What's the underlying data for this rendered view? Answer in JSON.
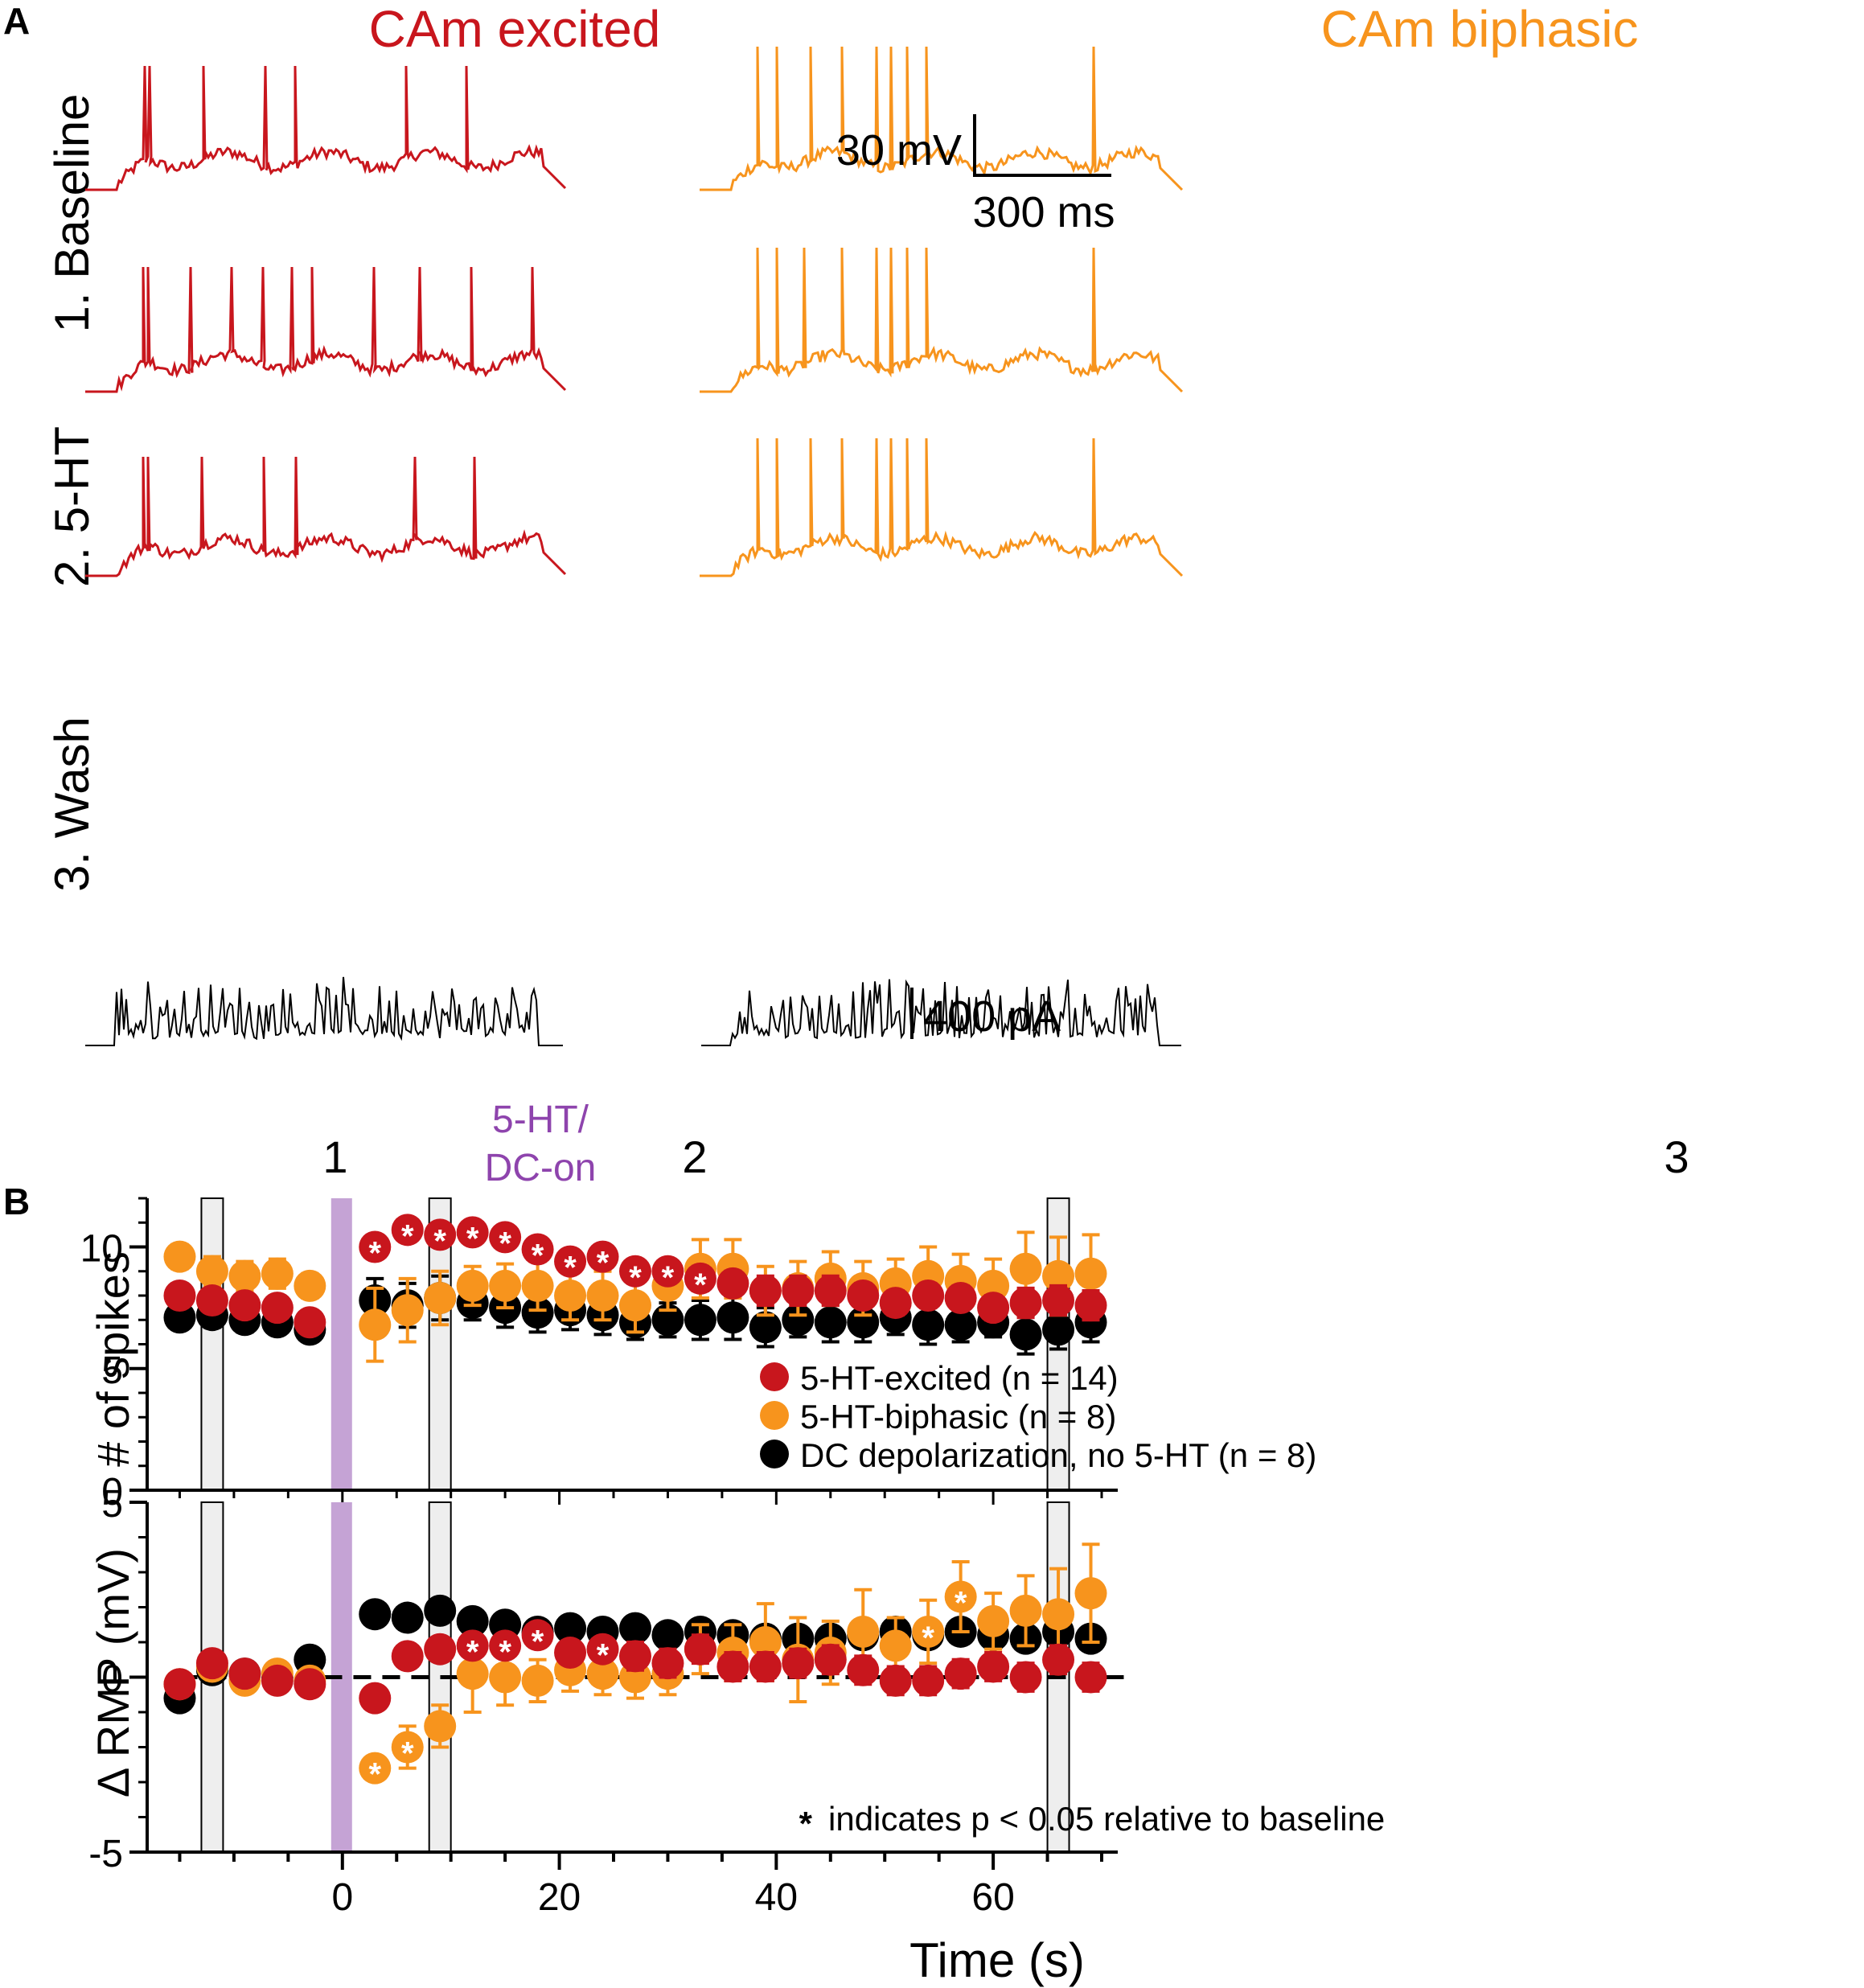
{
  "colors": {
    "excited": "#c8161d",
    "biphasic": "#f7941d",
    "dc": "#000000",
    "drug": "#c5a3d5",
    "window_fill": "#eeeeee"
  },
  "panel_a": {
    "panel_label": "A",
    "columns": [
      "CAm excited",
      "CAm biphasic"
    ],
    "rows": [
      "1. Baseline",
      "2. 5-HT",
      "3. Wash"
    ],
    "voltage_scale": "30 mV",
    "time_scale": "300 ms",
    "current_scale": "400 pA"
  },
  "panel_b": {
    "panel_label": "B",
    "window_labels": [
      "1",
      "2",
      "3"
    ],
    "drug_label_line1": "5-HT/",
    "drug_label_line2": "DC-on",
    "note_star": "*",
    "note_text": "indicates p < 0.05 relative to baseline",
    "legend": [
      "5-HT-excited (n = 14)",
      "5-HT-biphasic (n = 8)",
      "DC depolarization, no 5-HT (n = 8)"
    ]
  },
  "chart_data": [
    {
      "type": "scatter",
      "title": "",
      "xlabel": "Time (s)",
      "ylabel": "# of spikes",
      "xlim": [
        -18,
        70
      ],
      "ylim": [
        0,
        12
      ],
      "x_ticks": [
        "0",
        "20",
        "40",
        "60"
      ],
      "y_ticks": [
        "0",
        "5",
        "10"
      ],
      "highlight_windows": [
        [
          -13,
          -11
        ],
        [
          8,
          10
        ],
        [
          65,
          67
        ]
      ],
      "drug_onset": 0,
      "series": [
        {
          "name": "DC depolarization, no 5-HT (n = 8)",
          "color": "#000000",
          "x": [
            -15,
            -12,
            -9,
            -6,
            -3,
            3,
            6,
            9,
            12,
            15,
            18,
            21,
            24,
            27,
            30,
            33,
            36,
            39,
            42,
            45,
            48,
            51,
            54,
            57,
            60,
            63,
            66,
            69
          ],
          "y": [
            7.1,
            7.2,
            7.0,
            6.9,
            6.6,
            7.8,
            7.6,
            7.9,
            7.7,
            7.5,
            7.3,
            7.4,
            7.2,
            6.9,
            7.0,
            7.0,
            7.1,
            6.7,
            7.0,
            6.9,
            6.9,
            7.1,
            6.8,
            6.8,
            6.9,
            6.4,
            6.6,
            6.9
          ],
          "err": [
            0.4,
            0.5,
            0.5,
            0.4,
            0.3,
            0.9,
            0.9,
            0.9,
            0.7,
            0.8,
            0.8,
            0.8,
            0.8,
            0.7,
            0.7,
            0.8,
            0.9,
            0.8,
            0.7,
            0.8,
            0.8,
            0.7,
            0.8,
            0.7,
            0.6,
            0.8,
            0.8,
            0.8
          ],
          "significant": []
        },
        {
          "name": "5-HT-biphasic (n = 8)",
          "color": "#f7941d",
          "x": [
            -15,
            -12,
            -9,
            -6,
            -3,
            3,
            6,
            9,
            12,
            15,
            18,
            21,
            24,
            27,
            30,
            33,
            36,
            39,
            42,
            45,
            48,
            51,
            54,
            57,
            60,
            63,
            66,
            69
          ],
          "y": [
            9.6,
            9.0,
            8.8,
            8.9,
            8.4,
            6.8,
            7.4,
            7.9,
            8.4,
            8.4,
            8.4,
            8.0,
            8.0,
            7.6,
            8.4,
            9.1,
            9.1,
            8.2,
            8.3,
            8.7,
            8.3,
            8.5,
            8.8,
            8.6,
            8.4,
            9.1,
            8.8,
            8.9
          ],
          "err": [
            0.5,
            0.6,
            0.6,
            0.6,
            0.5,
            1.5,
            1.3,
            1.1,
            0.8,
            0.9,
            1.0,
            1.0,
            1.0,
            1.1,
            1.0,
            1.2,
            1.2,
            1.0,
            1.1,
            1.1,
            1.1,
            1.0,
            1.2,
            1.1,
            1.1,
            1.5,
            1.6,
            1.6
          ],
          "significant": []
        },
        {
          "name": "5-HT-excited (n = 14)",
          "color": "#c8161d",
          "x": [
            -15,
            -12,
            -9,
            -6,
            -3,
            3,
            6,
            9,
            12,
            15,
            18,
            21,
            24,
            27,
            30,
            33,
            36,
            39,
            42,
            45,
            48,
            51,
            54,
            57,
            60,
            63,
            66,
            69
          ],
          "y": [
            8.0,
            7.8,
            7.6,
            7.5,
            6.9,
            10.0,
            10.7,
            10.5,
            10.6,
            10.4,
            9.9,
            9.4,
            9.6,
            9.0,
            9.0,
            8.7,
            8.5,
            8.2,
            8.2,
            8.2,
            8.0,
            7.7,
            8.0,
            7.9,
            7.5,
            7.7,
            7.8,
            7.6
          ],
          "err": [
            0.3,
            0.3,
            0.3,
            0.3,
            0.3,
            0.4,
            0.3,
            0.3,
            0.3,
            0.4,
            0.4,
            0.4,
            0.4,
            0.4,
            0.4,
            0.5,
            0.5,
            0.6,
            0.6,
            0.6,
            0.5,
            0.5,
            0.5,
            0.5,
            0.5,
            0.6,
            0.6,
            0.6
          ],
          "significant": [
            3,
            6,
            9,
            12,
            15,
            18,
            21,
            24,
            27,
            30,
            33
          ]
        }
      ]
    },
    {
      "type": "scatter",
      "title": "",
      "xlabel": "Time (s)",
      "ylabel": "Δ RMP (mV)",
      "xlim": [
        -18,
        70
      ],
      "ylim": [
        -5,
        5
      ],
      "x_ticks": [
        "0",
        "20",
        "40",
        "60"
      ],
      "y_ticks": [
        "-5",
        "0",
        "5"
      ],
      "zero_line": true,
      "series": [
        {
          "name": "DC depolarization, no 5-HT (n = 8)",
          "color": "#000000",
          "x": [
            -15,
            -12,
            -9,
            -6,
            -3,
            3,
            6,
            9,
            12,
            15,
            18,
            21,
            24,
            27,
            30,
            33,
            36,
            39,
            42,
            45,
            48,
            51,
            54,
            57,
            60,
            63,
            66,
            69
          ],
          "y": [
            -0.6,
            0.2,
            0.1,
            0.0,
            0.5,
            1.8,
            1.7,
            1.9,
            1.6,
            1.5,
            1.3,
            1.4,
            1.3,
            1.4,
            1.2,
            1.3,
            1.2,
            1.1,
            1.1,
            1.1,
            1.2,
            1.3,
            1.2,
            1.3,
            1.2,
            1.1,
            1.3,
            1.1
          ],
          "err": [
            0.2,
            0.2,
            0.2,
            0.2,
            0.2,
            0.2,
            0.2,
            0.2,
            0.2,
            0.2,
            0.2,
            0.2,
            0.3,
            0.3,
            0.3,
            0.3,
            0.3,
            0.3,
            0.3,
            0.3,
            0.3,
            0.3,
            0.3,
            0.3,
            0.3,
            0.3,
            0.3,
            0.3
          ],
          "significant": []
        },
        {
          "name": "5-HT-biphasic (n = 8)",
          "color": "#f7941d",
          "x": [
            -15,
            -12,
            -9,
            -6,
            -3,
            3,
            6,
            9,
            12,
            15,
            18,
            21,
            24,
            27,
            30,
            33,
            36,
            39,
            42,
            45,
            48,
            51,
            54,
            57,
            60,
            63,
            66,
            69
          ],
          "y": [
            -0.2,
            0.3,
            -0.1,
            0.1,
            -0.1,
            -2.6,
            -2.0,
            -1.4,
            0.1,
            0.0,
            -0.1,
            0.2,
            0.1,
            0.0,
            0.1,
            0.8,
            0.7,
            1.0,
            0.5,
            0.7,
            1.3,
            0.9,
            1.3,
            2.3,
            1.6,
            1.9,
            1.8,
            2.4
          ],
          "err": [
            0.2,
            0.2,
            0.2,
            0.2,
            0.2,
            0.3,
            0.6,
            0.6,
            1.1,
            0.8,
            0.6,
            0.6,
            0.6,
            0.6,
            0.6,
            0.7,
            0.8,
            1.1,
            1.2,
            0.9,
            1.2,
            0.8,
            0.9,
            1.0,
            0.8,
            1.0,
            1.3,
            1.4
          ],
          "significant": [
            3,
            6,
            54,
            57
          ]
        },
        {
          "name": "5-HT-excited (n = 14)",
          "color": "#c8161d",
          "x": [
            -15,
            -12,
            -9,
            -6,
            -3,
            3,
            6,
            9,
            12,
            15,
            18,
            21,
            24,
            27,
            30,
            33,
            36,
            39,
            42,
            45,
            48,
            51,
            54,
            57,
            60,
            63,
            66,
            69
          ],
          "y": [
            -0.2,
            0.4,
            0.1,
            -0.1,
            -0.2,
            -0.6,
            0.6,
            0.8,
            0.9,
            0.9,
            1.2,
            0.7,
            0.8,
            0.6,
            0.4,
            0.8,
            0.3,
            0.3,
            0.4,
            0.5,
            0.2,
            -0.1,
            -0.1,
            0.1,
            0.3,
            0.0,
            0.5,
            0.0
          ],
          "err": [
            0.2,
            0.2,
            0.2,
            0.2,
            0.2,
            0.2,
            0.3,
            0.3,
            0.3,
            0.3,
            0.3,
            0.3,
            0.3,
            0.4,
            0.4,
            0.4,
            0.4,
            0.4,
            0.4,
            0.4,
            0.4,
            0.4,
            0.4,
            0.4,
            0.4,
            0.4,
            0.4,
            0.4
          ],
          "significant": [
            12,
            15,
            18,
            24
          ]
        }
      ]
    }
  ]
}
